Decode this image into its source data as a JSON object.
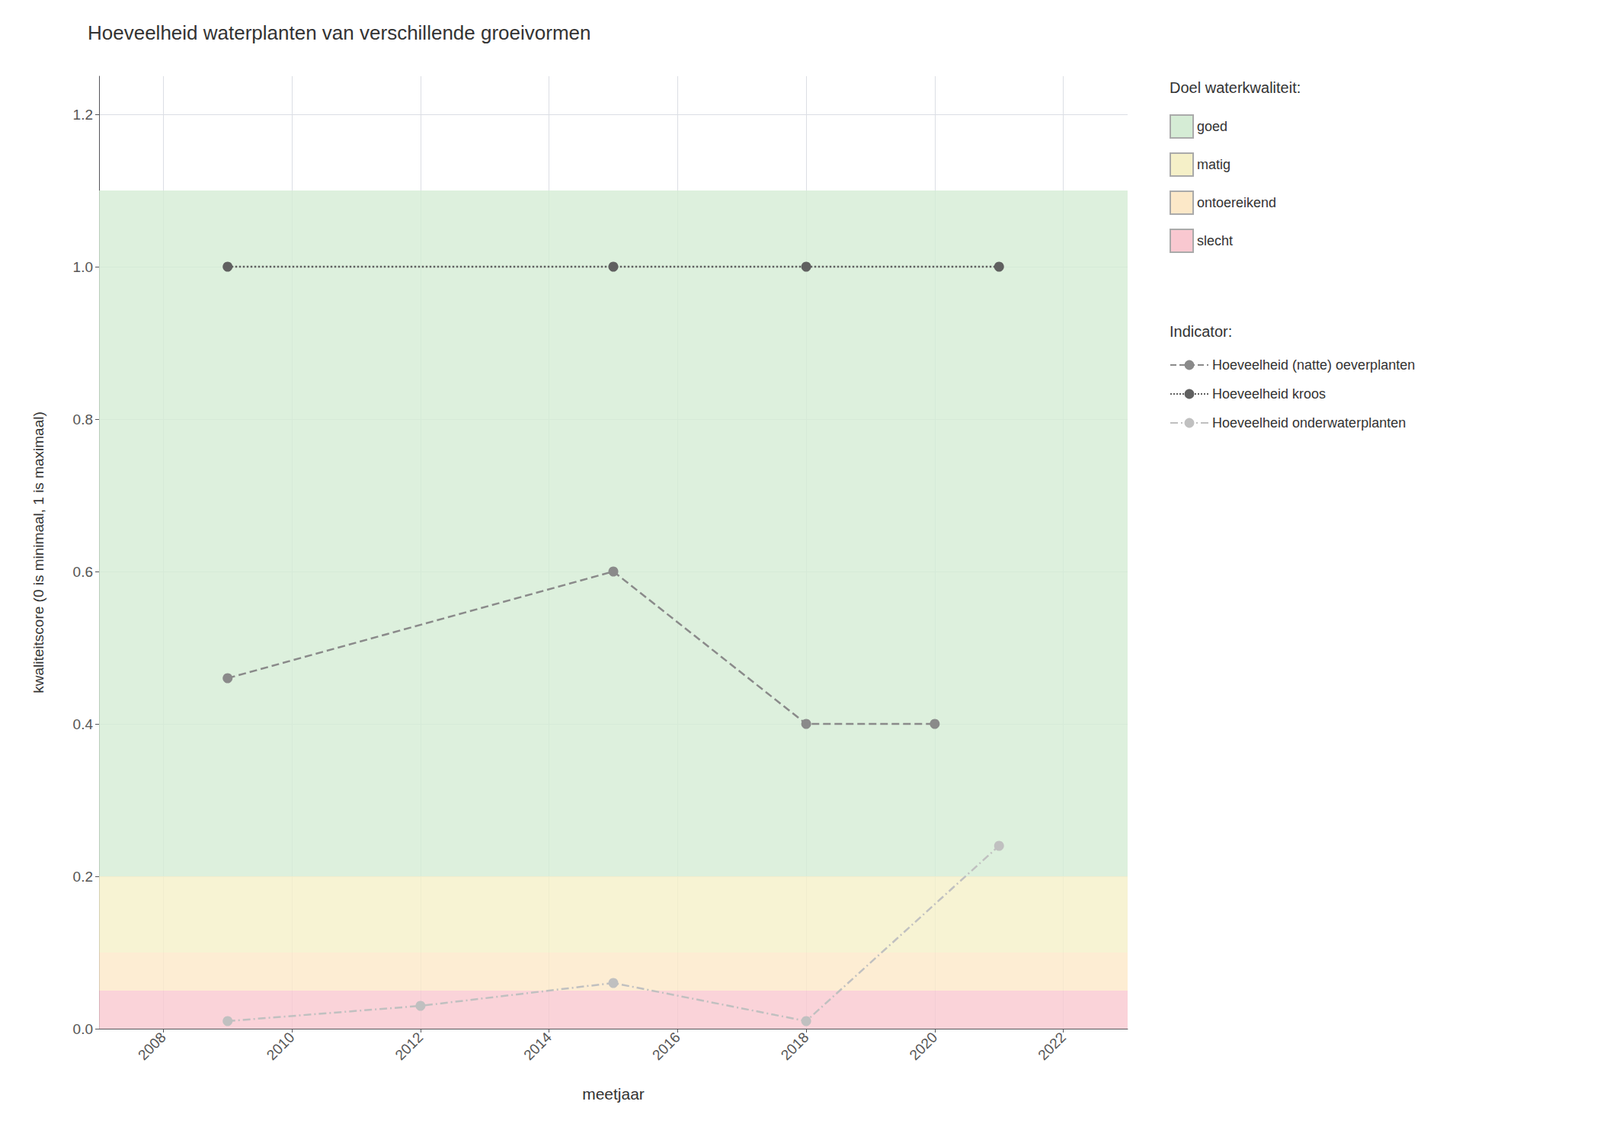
{
  "chart_data": {
    "type": "line",
    "title": "Hoeveelheid waterplanten van verschillende groeivormen",
    "x_label": "meetjaar",
    "y_label": "kwaliteitscore (0 is minimaal, 1 is maximaal)",
    "xlim": [
      2007,
      2023
    ],
    "xticks": [
      2008,
      2010,
      2012,
      2014,
      2016,
      2018,
      2020,
      2022
    ],
    "ylim": [
      0.0,
      1.25
    ],
    "yticks": [
      {
        "value": 0.0,
        "label": "0.0"
      },
      0.2,
      0.4,
      0.6,
      0.8,
      {
        "value": 1.0,
        "label": "1.0"
      },
      1.2
    ],
    "grid": true,
    "legend": "right",
    "band_legend_title": "Doel waterkwaliteit:",
    "bands": [
      {
        "name": "goed",
        "ymin": 0.2,
        "ymax": 1.1,
        "color": "#d5ecd5"
      },
      {
        "name": "matig",
        "ymin": 0.1,
        "ymax": 0.2,
        "color": "#f5f0c8"
      },
      {
        "name": "ontoereikend",
        "ymin": 0.05,
        "ymax": 0.1,
        "color": "#fce8c8"
      },
      {
        "name": "slecht",
        "ymin": 0.0,
        "ymax": 0.05,
        "color": "#f9c8d0"
      }
    ],
    "series_legend_title": "Indicator:",
    "legend_entries": [
      "Hoeveelheid (natte) oeverplanten",
      "Hoeveelheid kroos",
      "Hoeveelheid onderwaterplanten"
    ],
    "series": [
      {
        "name": "Hoeveelheid kroos",
        "color": "#606060",
        "line_style": "dotted",
        "marker": "circle",
        "x": [
          2009,
          2015,
          2018,
          2021
        ],
        "values": [
          1.0,
          1.0,
          1.0,
          1.0
        ]
      },
      {
        "name": "Hoeveelheid (natte) oeverplanten",
        "color": "#8a8a8a",
        "line_style": "dashed",
        "marker": "circle",
        "x": [
          2009,
          2015,
          2018,
          2020
        ],
        "values": [
          0.46,
          0.6,
          0.4,
          0.4
        ]
      },
      {
        "name": "Hoeveelheid onderwaterplanten",
        "color": "#c0c0c0",
        "line_style": "dashdot",
        "marker": "circle",
        "x": [
          2009,
          2012,
          2015,
          2018,
          2021
        ],
        "values": [
          0.01,
          0.03,
          0.06,
          0.01,
          0.24
        ]
      }
    ]
  }
}
